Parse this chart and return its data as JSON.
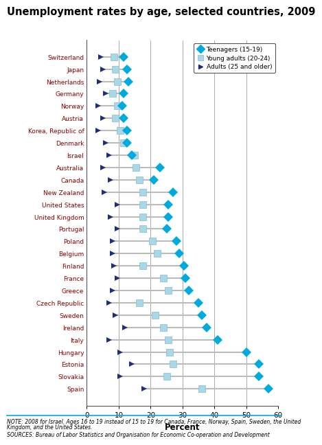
{
  "title": "Unemployment rates by age, selected countries, 2009",
  "countries": [
    "Switzerland",
    "Japan",
    "Netherlands",
    "Germany",
    "Norway",
    "Austria",
    "Korea, Republic of",
    "Denmark",
    "Israel",
    "Australia",
    "Canada",
    "New Zealand",
    "United States",
    "United Kingdom",
    "Portugal",
    "Poland",
    "Belgium",
    "Finland",
    "France",
    "Greece",
    "Czech Republic",
    "Sweden",
    "Ireland",
    "Italy",
    "Hungary",
    "Estonia",
    "Slovakia",
    "Spain"
  ],
  "teenagers": [
    11.5,
    12.5,
    13.0,
    11.5,
    11.0,
    11.5,
    12.5,
    12.5,
    14.0,
    23.0,
    21.0,
    27.0,
    25.5,
    25.5,
    25.0,
    28.0,
    29.0,
    30.5,
    31.0,
    32.0,
    35.0,
    36.0,
    37.5,
    41.0,
    50.0,
    54.0,
    54.0,
    57.0
  ],
  "young_adults": [
    8.5,
    9.0,
    9.5,
    8.0,
    9.5,
    9.0,
    10.5,
    11.5,
    15.0,
    15.5,
    16.5,
    17.5,
    17.5,
    17.5,
    17.5,
    20.5,
    22.0,
    17.5,
    24.0,
    25.5,
    16.5,
    21.5,
    24.0,
    25.5,
    26.0,
    27.0,
    25.0,
    36.0
  ],
  "adults": [
    4.5,
    5.0,
    4.0,
    6.0,
    3.5,
    5.0,
    3.5,
    6.0,
    7.0,
    5.0,
    7.5,
    5.5,
    9.5,
    7.5,
    9.5,
    8.0,
    8.0,
    8.5,
    9.5,
    8.0,
    7.0,
    9.0,
    12.0,
    7.0,
    10.5,
    14.0,
    10.5,
    18.0
  ],
  "teen_color": "#00AADD",
  "young_adult_color": "#A8D8E8",
  "adult_color": "#1F2D7B",
  "xlabel": "Percent",
  "xlim": [
    0,
    60
  ],
  "xticks": [
    0,
    10,
    20,
    30,
    40,
    50,
    60
  ],
  "note": "NOTE: 2008 for Israel. Ages 16 to 19 instead of 15 to 19 for Canada, France, Norway, Spain, Sweden, the United\nKingdom, and the United States.",
  "sources": "SOURCES: Bureau of Labor Statistics and Organisation for Economic Co-operation and Development",
  "legend_labels": [
    "Teenagers (15-19)",
    "Young adults (20-24)",
    "Adults (25 and older)"
  ]
}
